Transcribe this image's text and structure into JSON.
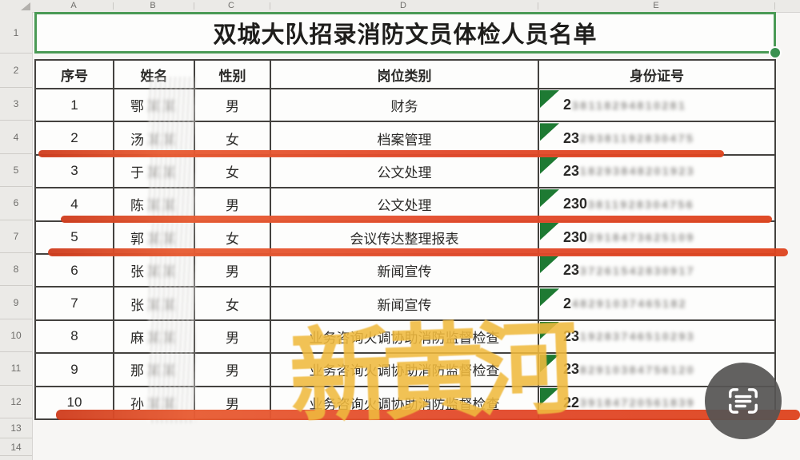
{
  "window": {
    "type": "spreadsheet-photo"
  },
  "column_strip": {
    "letters": [
      "A",
      "B",
      "C",
      "D",
      "E"
    ]
  },
  "row_gutter": {
    "numbers": [
      "1",
      "2",
      "3",
      "4",
      "5",
      "6",
      "7",
      "8",
      "9",
      "10",
      "11",
      "12",
      "13",
      "14"
    ]
  },
  "sheet": {
    "title": "双城大队招录消防文员体检人员名单",
    "headers": [
      "序号",
      "姓名",
      "性别",
      "岗位类别",
      "身份证号"
    ],
    "rows": [
      {
        "no": "1",
        "surname": "鄂",
        "name_mask_glyphs": "某某",
        "gender": "男",
        "position": "财务",
        "id_prefix": "2",
        "id_mask_glyphs": "38118294810281"
      },
      {
        "no": "2",
        "surname": "汤",
        "name_mask_glyphs": "某某",
        "gender": "女",
        "position": "档案管理",
        "id_prefix": "23",
        "id_mask_glyphs": "29381192830475"
      },
      {
        "no": "3",
        "surname": "于",
        "name_mask_glyphs": "某某",
        "gender": "女",
        "position": "公文处理",
        "id_prefix": "23",
        "id_mask_glyphs": "18293848201923"
      },
      {
        "no": "4",
        "surname": "陈",
        "name_mask_glyphs": "某某",
        "gender": "男",
        "position": "公文处理",
        "id_prefix": "230",
        "id_mask_glyphs": "3811928304756"
      },
      {
        "no": "5",
        "surname": "郭",
        "name_mask_glyphs": "某某",
        "gender": "女",
        "position": "会议传达整理报表",
        "id_prefix": "230",
        "id_mask_glyphs": "2918473625109"
      },
      {
        "no": "6",
        "surname": "张",
        "name_mask_glyphs": "某某",
        "gender": "男",
        "position": "新闻宣传",
        "id_prefix": "23",
        "id_mask_glyphs": "37261542830917"
      },
      {
        "no": "7",
        "surname": "张",
        "name_mask_glyphs": "某某",
        "gender": "女",
        "position": "新闻宣传",
        "id_prefix": "2",
        "id_mask_glyphs": "48291037465182"
      },
      {
        "no": "8",
        "surname": "麻",
        "name_mask_glyphs": "某某",
        "gender": "男",
        "position": "业务咨询火调协助消防监督检查",
        "id_prefix": "23",
        "id_mask_glyphs": "19283746510293"
      },
      {
        "no": "9",
        "surname": "那",
        "name_mask_glyphs": "某某",
        "gender": "男",
        "position": "业务咨询火调协助消防监督检查",
        "id_prefix": "23",
        "id_mask_glyphs": "82910384756120"
      },
      {
        "no": "10",
        "surname": "孙",
        "name_mask_glyphs": "某某",
        "gender": "男",
        "position": "业务咨询火调协助消防监督检查",
        "id_prefix": "22",
        "id_mask_glyphs": "39184720561839"
      }
    ]
  },
  "annotations": {
    "red_underline_after_serials": [
      "2",
      "4",
      "5",
      "10"
    ],
    "watermark_text": "新黄河",
    "colors": {
      "selection_green": "#4a9a55",
      "flag_triangle_green": "#1e7a33",
      "marker_red": "#e2492b",
      "watermark_gold": "#f0ba3e"
    }
  },
  "overlay": {
    "scan_button": {
      "icon": "scan-text-icon"
    }
  }
}
